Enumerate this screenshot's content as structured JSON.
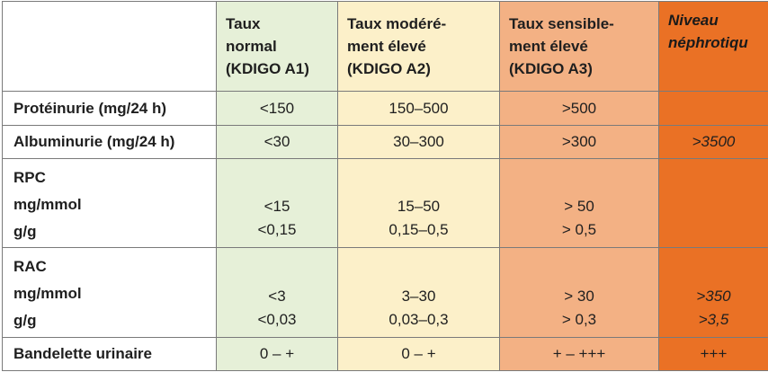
{
  "headers": [
    {
      "lines": [
        "Taux",
        "normal",
        "(KDIGO A1)"
      ]
    },
    {
      "lines": [
        "Taux modéré-",
        "ment élevé",
        "(KDIGO A2)"
      ]
    },
    {
      "lines": [
        "Taux sensible-",
        "ment élevé",
        "(KDIGO A3)"
      ]
    },
    {
      "lines": [
        "Niveau",
        "néphrotiqu"
      ]
    }
  ],
  "rows": [
    {
      "label": [
        "Protéinurie (mg/24 h)"
      ],
      "cells": [
        [
          "<150"
        ],
        [
          "150–500"
        ],
        [
          ">500"
        ],
        [
          ""
        ]
      ]
    },
    {
      "label": [
        "Albuminurie (mg/24 h)"
      ],
      "cells": [
        [
          "<30"
        ],
        [
          "30–300"
        ],
        [
          ">300"
        ],
        [
          ">3500"
        ]
      ]
    },
    {
      "label": [
        "RPC",
        "mg/mmol",
        "g/g"
      ],
      "cells": [
        [
          "<15",
          "<0,15"
        ],
        [
          "15–50",
          "0,15–0,5"
        ],
        [
          "> 50",
          "> 0,5"
        ],
        [
          "",
          ""
        ]
      ]
    },
    {
      "label": [
        "RAC",
        "mg/mmol",
        "g/g"
      ],
      "cells": [
        [
          "<3",
          "<0,03"
        ],
        [
          "3–30",
          "0,03–0,3"
        ],
        [
          "> 30",
          "> 0,3"
        ],
        [
          ">350",
          ">3,5"
        ]
      ]
    },
    {
      "label": [
        "Bandelette urinaire"
      ],
      "cells": [
        [
          "0 – +"
        ],
        [
          "0 – +"
        ],
        [
          "+ – +++"
        ],
        [
          "+++"
        ]
      ]
    }
  ],
  "colors": {
    "normal": "#e6f0d8",
    "moderate": "#fcf0c9",
    "severe": "#f3b184",
    "nephrotic": "#ea7125"
  }
}
